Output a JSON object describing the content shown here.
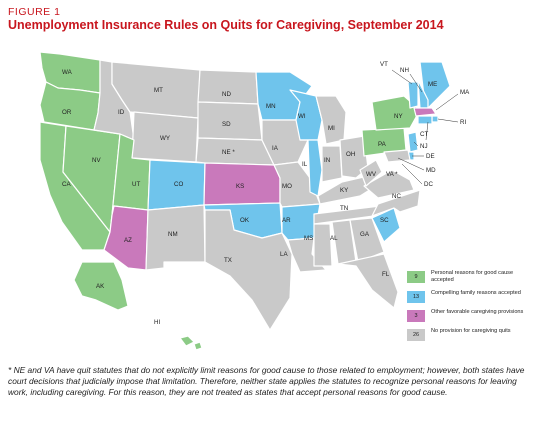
{
  "figure_label": "FIGURE 1",
  "title": "Unemployment Insurance Rules on Quits for Caregiving, September 2014",
  "colors": {
    "personal": "#8ccb86",
    "compelling": "#6fc4ec",
    "other": "#c979bb",
    "none": "#c9c9c9"
  },
  "states": {
    "WA": "WA",
    "OR": "OR",
    "CA": "CA",
    "NV": "NV",
    "ID": "ID",
    "MT": "MT",
    "WY": "WY",
    "UT": "UT",
    "AZ": "AZ",
    "CO": "CO",
    "NM": "NM",
    "ND": "ND",
    "SD": "SD",
    "NE": "NE *",
    "KS": "KS",
    "OK": "OK",
    "TX": "TX",
    "MN": "MN",
    "IA": "IA",
    "MO": "MO",
    "AR": "AR",
    "LA": "LA",
    "WI": "WI",
    "IL": "IL",
    "MI": "MI",
    "IN": "IN",
    "OH": "OH",
    "KY": "KY",
    "TN": "TN",
    "MS": "MS",
    "AL": "AL",
    "GA": "GA",
    "FL": "FL",
    "SC": "SC",
    "NC": "NC",
    "VA": "VA *",
    "WV": "WV",
    "PA": "PA",
    "NY": "NY",
    "ME": "ME",
    "VT": "VT",
    "NH": "NH",
    "MA": "MA",
    "RI": "RI",
    "CT": "CT",
    "NJ": "NJ",
    "DE": "DE",
    "MD": "MD",
    "DC": "DC",
    "AK": "AK",
    "HI": "HI"
  },
  "legend": [
    {
      "count": "9",
      "label": "Personal reasons for good cause accepted",
      "color": "#8ccb86"
    },
    {
      "count": "13",
      "label": "Compelling family reasons accepted",
      "color": "#6fc4ec"
    },
    {
      "count": "3",
      "label": "Other favorable caregiving provisions",
      "color": "#c979bb"
    },
    {
      "count": "26",
      "label": "No provision for caregiving quits",
      "color": "#c9c9c9"
    }
  ],
  "footnote": "* NE and VA have quit statutes that do not explicitly limit reasons for good cause to those related to employment; however, both states have court decisions that judicially impose that limitation. Therefore, neither state applies the statutes to recognize personal reasons for leaving work, including caregiving. For this reason, they are not treated as states that accept personal reasons for good cause."
}
